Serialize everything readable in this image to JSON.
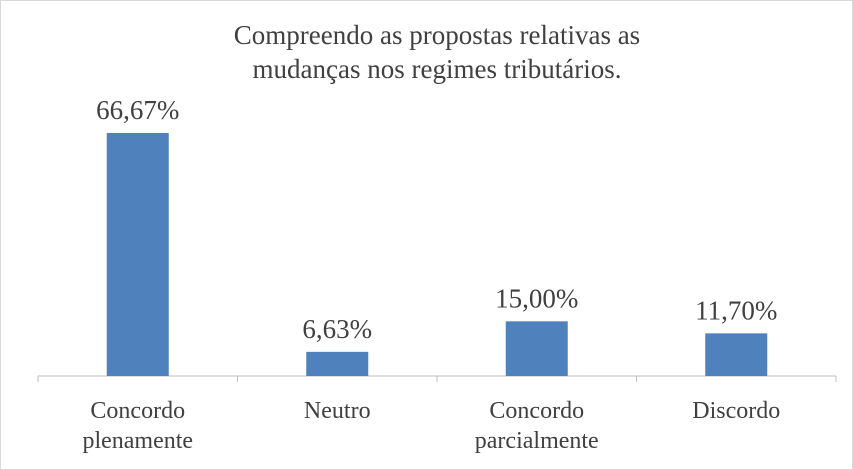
{
  "chart_data": {
    "type": "bar",
    "title": "Compreendo as propostas relativas as mudanças nos regimes tributários.",
    "categories": [
      "Concordo plenamente",
      "Neutro",
      "Concordo parcialmente",
      "Discordo"
    ],
    "values": [
      66.67,
      6.63,
      15.0,
      11.7
    ],
    "value_labels": [
      "66,67%",
      "6,63%",
      "15,00%",
      "11,70%"
    ],
    "color": "#4f81bd"
  }
}
